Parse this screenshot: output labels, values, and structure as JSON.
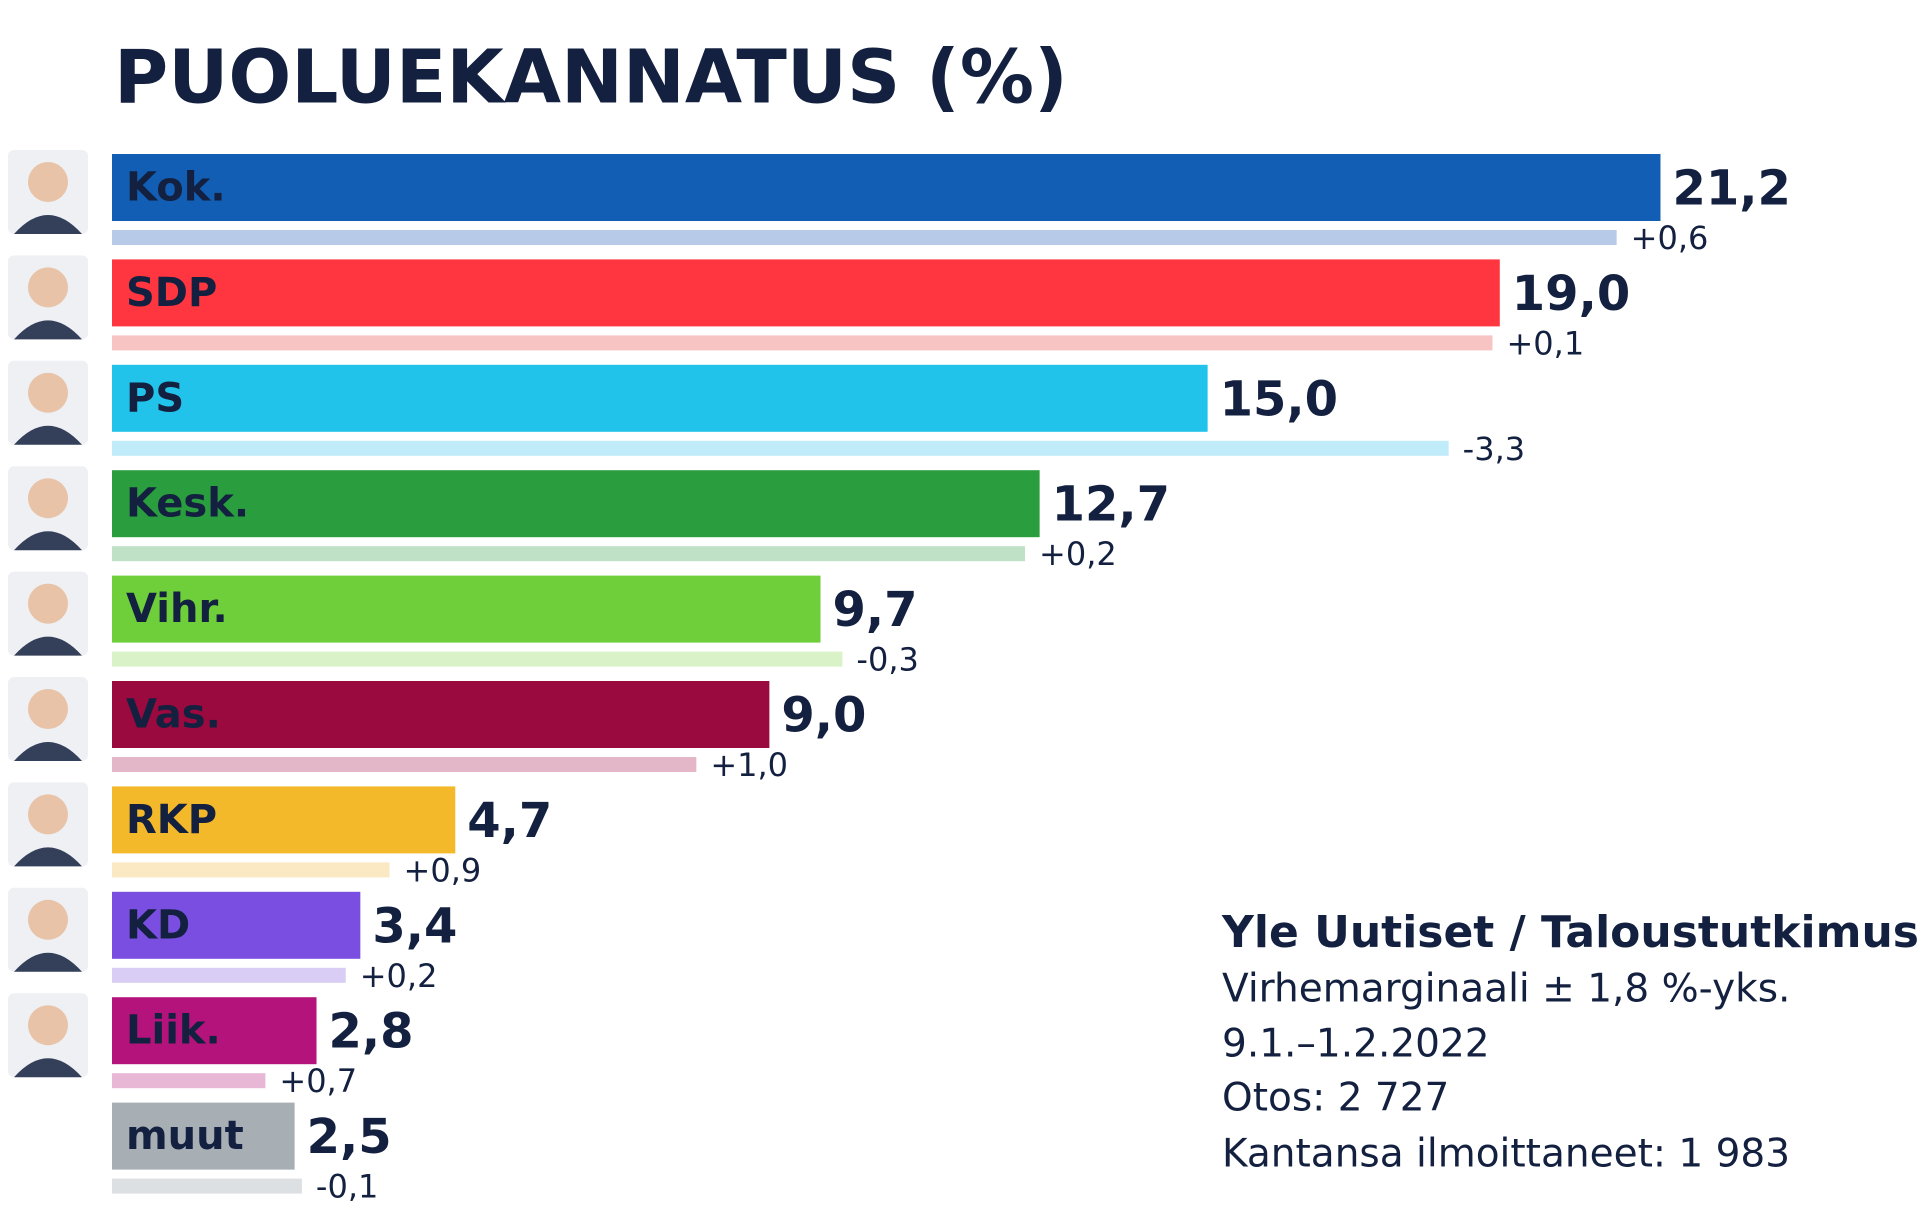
{
  "chart_data": {
    "type": "bar",
    "title": "PUOLUEKANNATUS (%)",
    "categories": [
      "Kok.",
      "SDP",
      "PS",
      "Kesk.",
      "Vihr.",
      "Vas.",
      "RKP",
      "KD",
      "Liik.",
      "muut"
    ],
    "values": [
      21.2,
      19.0,
      15.0,
      12.7,
      9.7,
      9.0,
      4.7,
      3.4,
      2.8,
      2.5
    ],
    "value_labels": [
      "21,2",
      "19,0",
      "15,0",
      "12,7",
      "9,7",
      "9,0",
      "4,7",
      "3,4",
      "2,8",
      "2,5"
    ],
    "colors": [
      "#115eb4",
      "#ff3640",
      "#22c3ea",
      "#2a9d3f",
      "#6ecf3a",
      "#9b0a3e",
      "#f3b92b",
      "#7a4ee0",
      "#b3137a",
      "#a7aeb4"
    ],
    "label_colors": [
      "#ffffff",
      "#ffffff",
      "#ffffff",
      "#ffffff",
      "#ffffff",
      "#ffffff",
      "#ffffff",
      "#ffffff",
      "#ffffff",
      "#111827"
    ],
    "previous_values": [
      20.6,
      18.9,
      18.3,
      12.5,
      10.0,
      8.0,
      3.8,
      3.2,
      2.1,
      2.6
    ],
    "previous_colors": [
      "#b7cbe8",
      "#f8c3c3",
      "#c0ebf8",
      "#bfe1c6",
      "#d9f2c8",
      "#e3b7c8",
      "#fbe9c4",
      "#d9cdf5",
      "#e8b7d6",
      "#dde0e3"
    ],
    "changes": [
      0.6,
      0.1,
      -3.3,
      0.2,
      -0.3,
      1.0,
      0.9,
      0.2,
      0.7,
      -0.1
    ],
    "change_labels": [
      "+0,6",
      "+0,1",
      "-3,3",
      "+0,2",
      "-0,3",
      "+1,0",
      "+0,9",
      "+0,2",
      "+0,7",
      "-0,1"
    ],
    "xlim": [
      0,
      24
    ],
    "notes": [
      "Yle Uutiset / Taloustutkimus",
      "Virhemarginaali ± 1,8 %-yks.",
      "9.1.–1.2.2022",
      "Otos: 2 727",
      "Kantansa ilmoittaneet: 1 983"
    ]
  }
}
